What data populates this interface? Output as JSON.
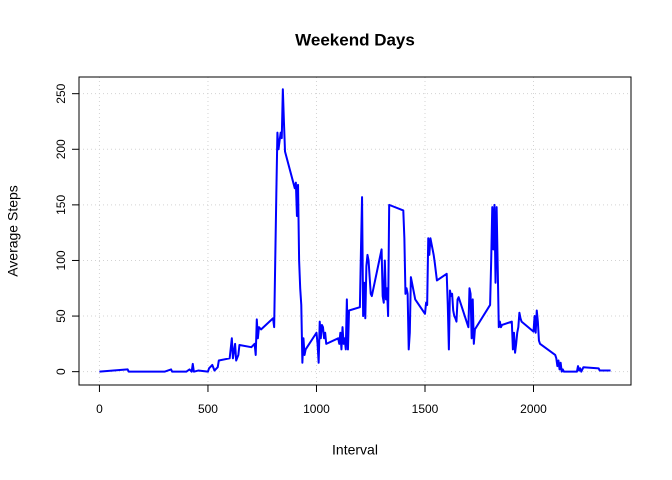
{
  "chart_data": {
    "type": "line",
    "title": "Weekend Days",
    "x_label": "Interval",
    "y_label": "Average Steps",
    "color": "#0000ff",
    "grid": true,
    "xlim": [
      -94.2,
      2449.2
    ],
    "ylim": [
      -12,
      265
    ],
    "xticks": [
      0,
      500,
      1000,
      1500,
      2000
    ],
    "yticks": [
      0,
      50,
      100,
      150,
      200,
      250
    ],
    "x": [
      0,
      130,
      135,
      300,
      330,
      335,
      400,
      415,
      425,
      430,
      435,
      455,
      500,
      505,
      520,
      530,
      545,
      550,
      600,
      610,
      615,
      625,
      630,
      640,
      645,
      700,
      715,
      720,
      725,
      730,
      735,
      745,
      800,
      805,
      810,
      815,
      820,
      825,
      835,
      840,
      845,
      850,
      855,
      900,
      905,
      910,
      915,
      920,
      925,
      930,
      935,
      940,
      945,
      950,
      1000,
      1005,
      1010,
      1015,
      1020,
      1025,
      1030,
      1035,
      1040,
      1045,
      1100,
      1105,
      1110,
      1115,
      1120,
      1125,
      1130,
      1135,
      1140,
      1145,
      1150,
      1200,
      1205,
      1210,
      1215,
      1220,
      1225,
      1230,
      1235,
      1240,
      1245,
      1250,
      1255,
      1300,
      1305,
      1310,
      1315,
      1320,
      1325,
      1330,
      1335,
      1400,
      1405,
      1410,
      1415,
      1420,
      1425,
      1430,
      1435,
      1440,
      1445,
      1450,
      1455,
      1500,
      1505,
      1510,
      1515,
      1520,
      1525,
      1530,
      1535,
      1540,
      1545,
      1550,
      1555,
      1600,
      1605,
      1610,
      1615,
      1620,
      1625,
      1630,
      1635,
      1640,
      1645,
      1650,
      1655,
      1700,
      1705,
      1710,
      1715,
      1720,
      1725,
      1730,
      1800,
      1805,
      1810,
      1815,
      1820,
      1825,
      1830,
      1835,
      1840,
      1845,
      1850,
      1855,
      1900,
      1905,
      1910,
      1915,
      1920,
      1925,
      1930,
      1935,
      1940,
      1945,
      2000,
      2005,
      2010,
      2015,
      2020,
      2025,
      2030,
      2100,
      2105,
      2110,
      2115,
      2120,
      2125,
      2130,
      2135,
      2140,
      2200,
      2205,
      2210,
      2215,
      2220,
      2230,
      2300,
      2305,
      2355
    ],
    "values": [
      0,
      2,
      0,
      0,
      2,
      0,
      0,
      2,
      0,
      7,
      0,
      1,
      0,
      3,
      6,
      1,
      4,
      10,
      12,
      30,
      12,
      25,
      10,
      15,
      24,
      22,
      25,
      15,
      47,
      30,
      40,
      38,
      48,
      40,
      100,
      160,
      215,
      200,
      215,
      210,
      254,
      225,
      198,
      165,
      170,
      140,
      168,
      100,
      75,
      60,
      8,
      30,
      15,
      20,
      35,
      25,
      8,
      45,
      30,
      42,
      40,
      30,
      35,
      25,
      30,
      25,
      35,
      20,
      40,
      25,
      30,
      20,
      65,
      20,
      55,
      58,
      110,
      157,
      50,
      80,
      48,
      95,
      105,
      100,
      85,
      70,
      68,
      110,
      68,
      62,
      100,
      65,
      75,
      50,
      150,
      145,
      120,
      70,
      75,
      70,
      20,
      35,
      85,
      80,
      75,
      70,
      65,
      52,
      62,
      60,
      120,
      105,
      120,
      115,
      110,
      105,
      98,
      90,
      82,
      88,
      60,
      20,
      73,
      68,
      70,
      55,
      50,
      48,
      45,
      65,
      67,
      40,
      75,
      70,
      30,
      65,
      25,
      38,
      60,
      100,
      148,
      110,
      150,
      80,
      148,
      95,
      40,
      45,
      40,
      42,
      45,
      20,
      35,
      17,
      25,
      35,
      40,
      53,
      48,
      45,
      36,
      50,
      35,
      55,
      45,
      28,
      25,
      15,
      12,
      5,
      10,
      2,
      8,
      0,
      2,
      0,
      0,
      5,
      1,
      3,
      0,
      4,
      3,
      1,
      1
    ]
  }
}
